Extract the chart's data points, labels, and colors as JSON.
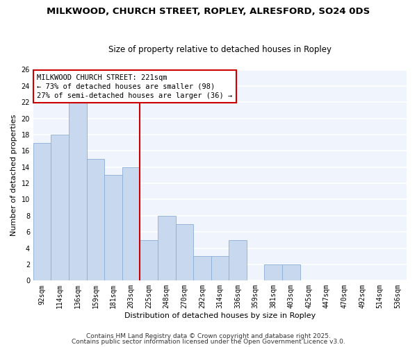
{
  "title1": "MILKWOOD, CHURCH STREET, ROPLEY, ALRESFORD, SO24 0DS",
  "title2": "Size of property relative to detached houses in Ropley",
  "xlabel": "Distribution of detached houses by size in Ropley",
  "ylabel": "Number of detached properties",
  "bins": [
    "92sqm",
    "114sqm",
    "136sqm",
    "159sqm",
    "181sqm",
    "203sqm",
    "225sqm",
    "248sqm",
    "270sqm",
    "292sqm",
    "314sqm",
    "336sqm",
    "359sqm",
    "381sqm",
    "403sqm",
    "425sqm",
    "447sqm",
    "470sqm",
    "492sqm",
    "514sqm",
    "536sqm"
  ],
  "counts": [
    17,
    18,
    22,
    15,
    13,
    14,
    5,
    8,
    7,
    3,
    3,
    5,
    0,
    2,
    2,
    0,
    0,
    0,
    0,
    0,
    0
  ],
  "bar_color": "#c8d8ee",
  "bar_edge_color": "#8aaed4",
  "vline_color": "#cc0000",
  "annotation_title": "MILKWOOD CHURCH STREET: 221sqm",
  "annotation_line1": "← 73% of detached houses are smaller (98)",
  "annotation_line2": "27% of semi-detached houses are larger (36) →",
  "annotation_box_color": "#ffffff",
  "annotation_box_edge": "#cc0000",
  "ylim": [
    0,
    26
  ],
  "yticks": [
    0,
    2,
    4,
    6,
    8,
    10,
    12,
    14,
    16,
    18,
    20,
    22,
    24,
    26
  ],
  "footer1": "Contains HM Land Registry data © Crown copyright and database right 2025.",
  "footer2": "Contains public sector information licensed under the Open Government Licence v3.0.",
  "background_color": "#ffffff",
  "plot_bg_color": "#f0f4fc",
  "grid_color": "#ffffff",
  "title_fontsize": 9.5,
  "subtitle_fontsize": 8.5,
  "axis_label_fontsize": 8,
  "tick_fontsize": 7,
  "annotation_fontsize": 7.5,
  "footer_fontsize": 6.5
}
